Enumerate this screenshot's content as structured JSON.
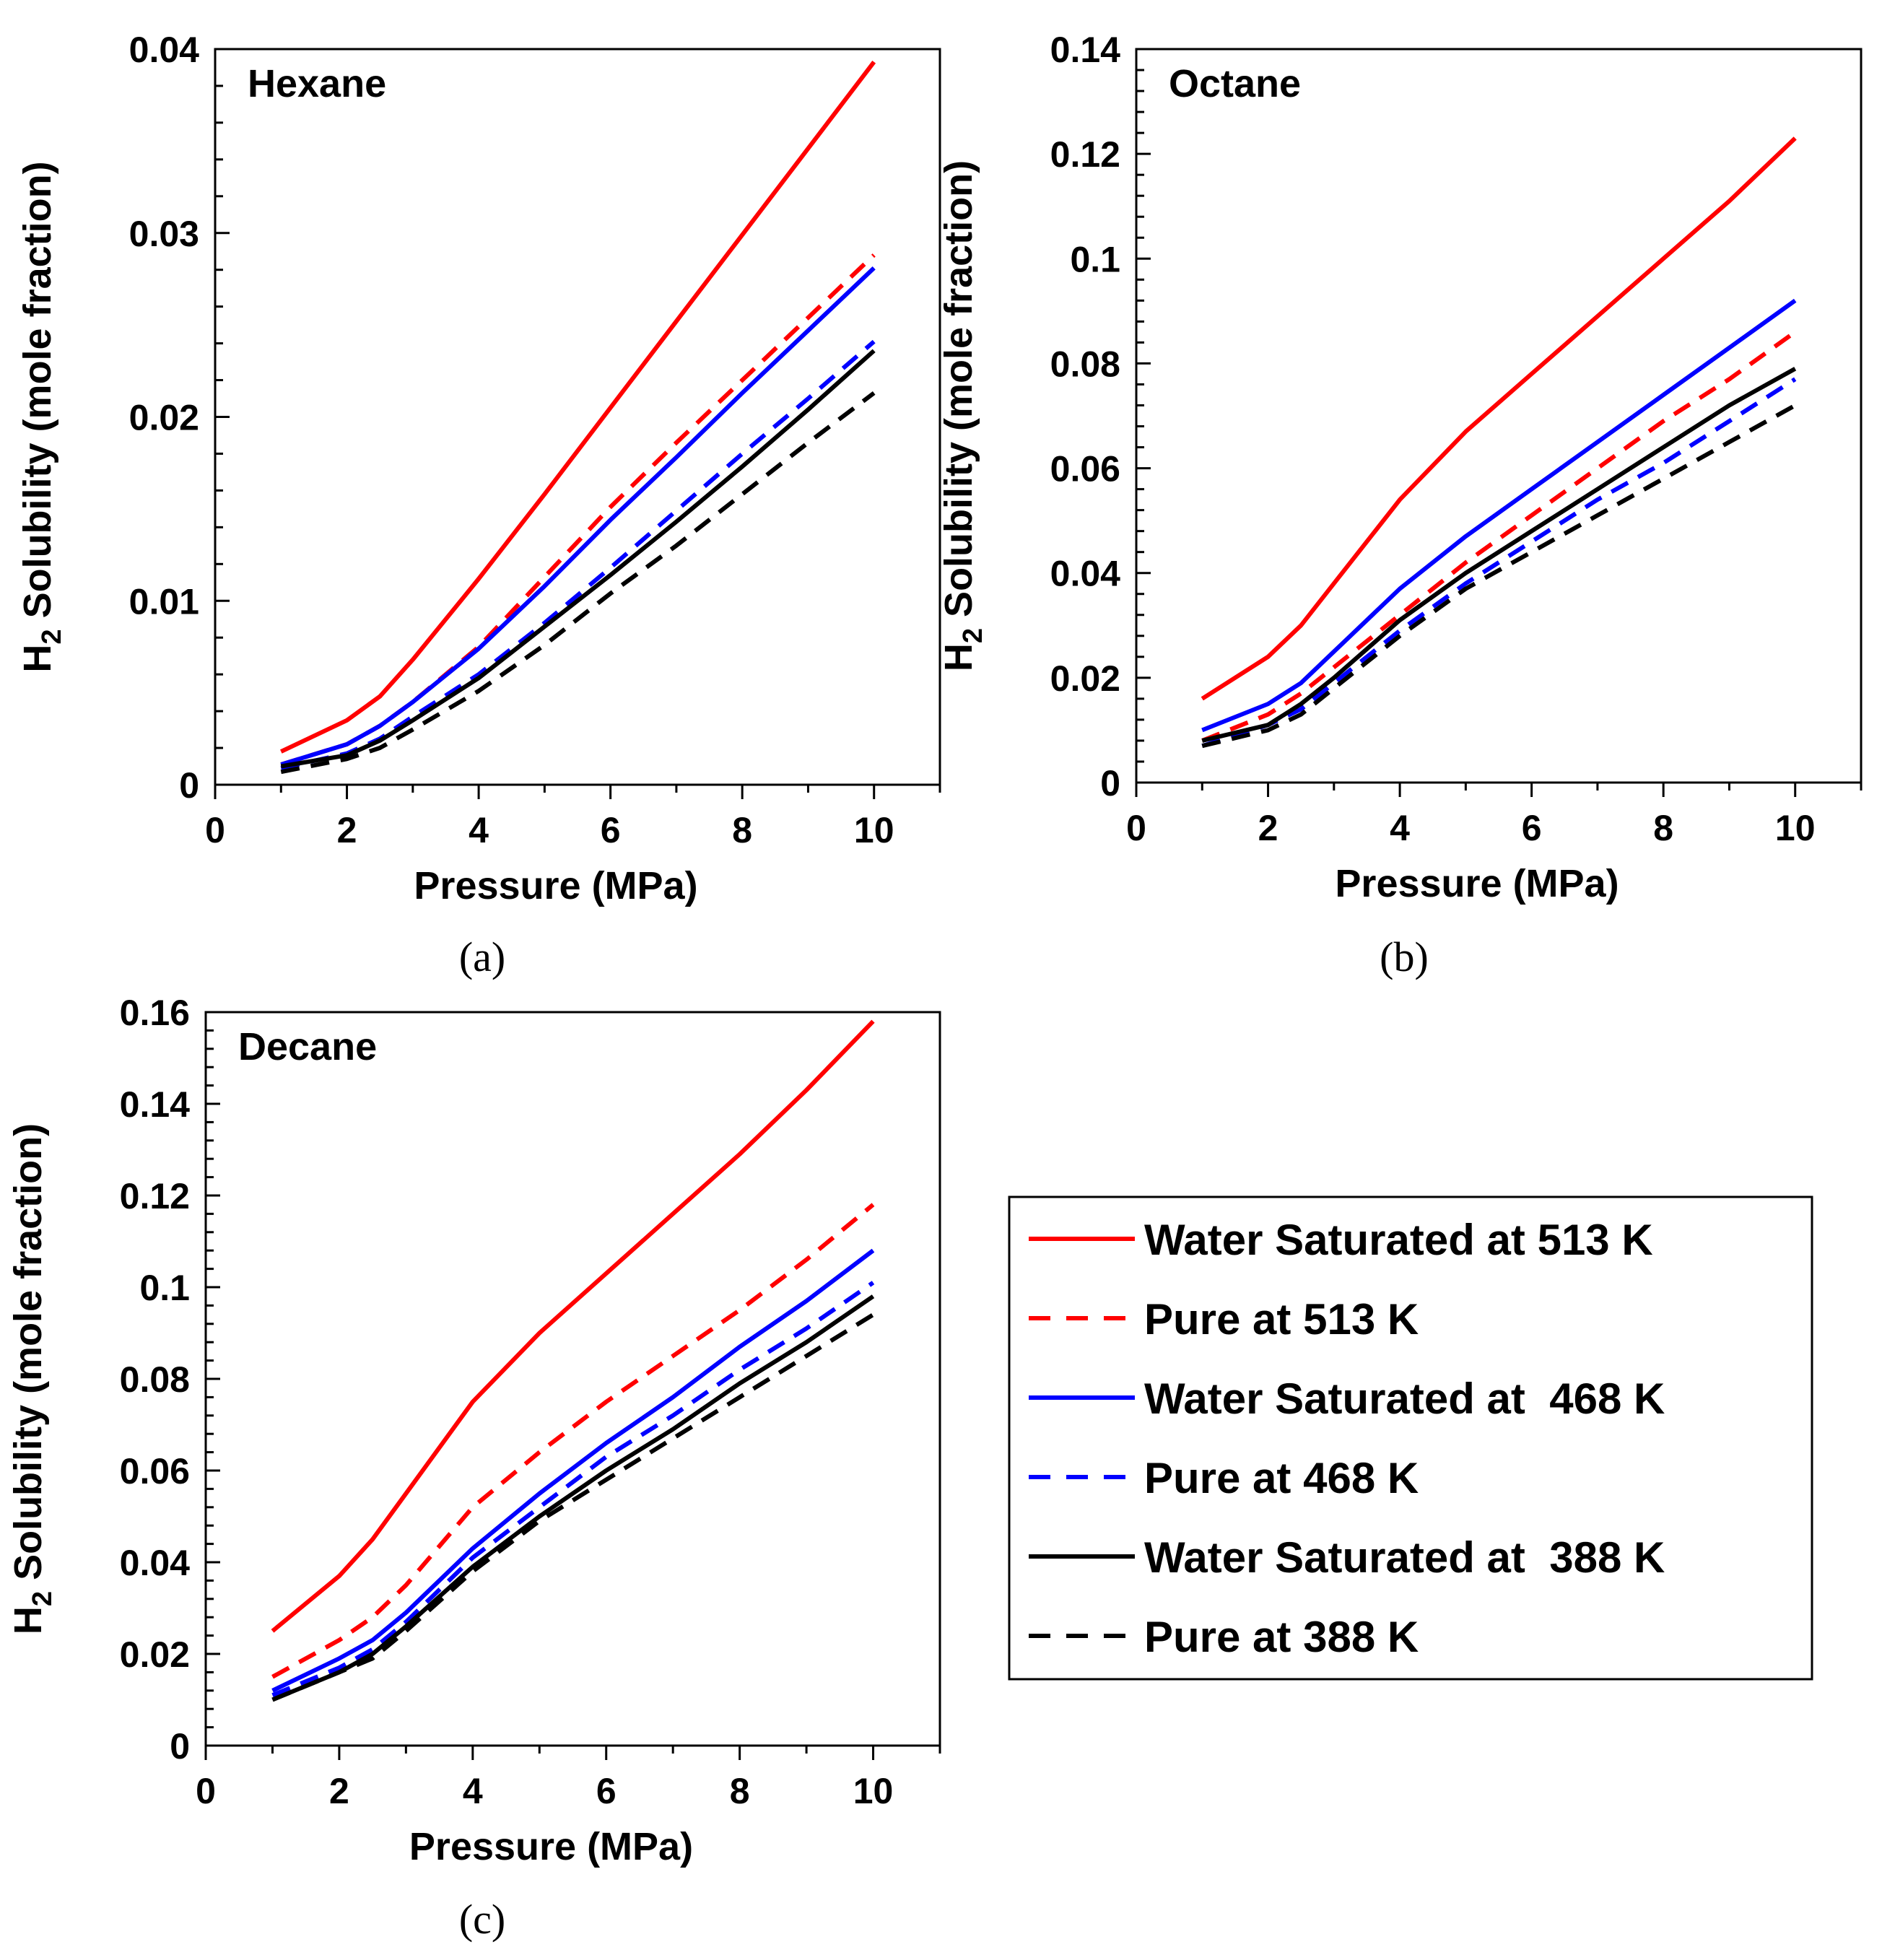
{
  "chart_data": [
    {
      "type": "line",
      "panel_label": "(a)",
      "title": "Hexane",
      "xlabel": "Pressure (MPa)",
      "ylabel_prefix": "H",
      "ylabel_sub": "2",
      "ylabel_rest": " Solubility (mole fraction)",
      "xlim": [
        0,
        11
      ],
      "ylim": [
        0,
        0.04
      ],
      "xticks": [
        0,
        2,
        4,
        6,
        8,
        10
      ],
      "xtick_labels": [
        "0",
        "2",
        "4",
        "6",
        "8",
        "10"
      ],
      "yticks": [
        0,
        0.01,
        0.02,
        0.03,
        0.04
      ],
      "ytick_labels": [
        "0",
        "0.01",
        "0.02",
        "0.03",
        "0.04"
      ],
      "x": [
        1,
        2,
        2.5,
        3,
        4,
        5,
        6,
        7,
        8,
        9,
        10
      ],
      "series": [
        {
          "name": "Water Saturated at 513 K",
          "values": [
            0.0018,
            0.0035,
            0.0048,
            0.0068,
            0.0112,
            0.0158,
            0.0205,
            0.0252,
            0.0299,
            0.0346,
            0.0393
          ]
        },
        {
          "name": "Pure at 513 K",
          "values": [
            0.0011,
            0.0022,
            0.0032,
            0.0045,
            0.0075,
            0.0113,
            0.0151,
            0.0186,
            0.022,
            0.0254,
            0.0288
          ]
        },
        {
          "name": "Water Saturated at 468 K",
          "values": [
            0.0011,
            0.0022,
            0.0032,
            0.0045,
            0.0074,
            0.0108,
            0.0144,
            0.0178,
            0.0213,
            0.0247,
            0.0281
          ]
        },
        {
          "name": "Pure at 468 K",
          "values": [
            0.0009,
            0.0017,
            0.0025,
            0.0037,
            0.006,
            0.0088,
            0.0118,
            0.0149,
            0.018,
            0.021,
            0.0241
          ]
        },
        {
          "name": "Water Saturated at 388 K",
          "values": [
            0.001,
            0.0016,
            0.0024,
            0.0035,
            0.0058,
            0.0086,
            0.0114,
            0.0143,
            0.0173,
            0.0204,
            0.0236
          ]
        },
        {
          "name": "Pure at 388 K",
          "values": [
            0.0007,
            0.0014,
            0.002,
            0.003,
            0.0051,
            0.0076,
            0.0104,
            0.013,
            0.0158,
            0.0186,
            0.0213
          ]
        }
      ]
    },
    {
      "type": "line",
      "panel_label": "(b)",
      "title": "Octane",
      "xlabel": "Pressure (MPa)",
      "ylabel_prefix": "H",
      "ylabel_sub": "2",
      "ylabel_rest": " Solubility (mole fraction)",
      "xlim": [
        0,
        11
      ],
      "ylim": [
        0,
        0.14
      ],
      "xticks": [
        0,
        2,
        4,
        6,
        8,
        10
      ],
      "xtick_labels": [
        "0",
        "2",
        "4",
        "6",
        "8",
        "10"
      ],
      "yticks": [
        0,
        0.02,
        0.04,
        0.06,
        0.08,
        0.1,
        0.12,
        0.14
      ],
      "ytick_labels": [
        "0",
        "0.02",
        "0.04",
        "0.06",
        "0.08",
        "0.1",
        "0.12",
        "0.14"
      ],
      "x": [
        1,
        2,
        2.5,
        3,
        4,
        5,
        6,
        7,
        8,
        9,
        10
      ],
      "series": [
        {
          "name": "Water Saturated at 513 K",
          "values": [
            0.016,
            0.024,
            0.03,
            0.038,
            0.054,
            0.067,
            0.078,
            0.089,
            0.1,
            0.111,
            0.123
          ]
        },
        {
          "name": "Pure at 513 K",
          "values": [
            0.008,
            0.013,
            0.017,
            0.022,
            0.032,
            0.042,
            0.051,
            0.06,
            0.069,
            0.077,
            0.086
          ]
        },
        {
          "name": "Water Saturated at 468 K",
          "values": [
            0.01,
            0.015,
            0.019,
            0.025,
            0.037,
            0.047,
            0.056,
            0.065,
            0.074,
            0.083,
            0.092
          ]
        },
        {
          "name": "Pure at 468 K",
          "values": [
            0.007,
            0.011,
            0.014,
            0.019,
            0.029,
            0.038,
            0.046,
            0.054,
            0.061,
            0.069,
            0.077
          ]
        },
        {
          "name": "Water Saturated at 388 K",
          "values": [
            0.008,
            0.011,
            0.015,
            0.02,
            0.031,
            0.04,
            0.048,
            0.056,
            0.064,
            0.072,
            0.079
          ]
        },
        {
          "name": "Pure at 388 K",
          "values": [
            0.007,
            0.01,
            0.013,
            0.018,
            0.028,
            0.037,
            0.044,
            0.051,
            0.058,
            0.065,
            0.072
          ]
        }
      ]
    },
    {
      "type": "line",
      "panel_label": "(c)",
      "title": "Decane",
      "xlabel": "Pressure (MPa)",
      "ylabel_prefix": "H",
      "ylabel_sub": "2",
      "ylabel_rest": " Solubility (mole fraction)",
      "xlim": [
        0,
        11
      ],
      "ylim": [
        0,
        0.16
      ],
      "xticks": [
        0,
        2,
        4,
        6,
        8,
        10
      ],
      "xtick_labels": [
        "0",
        "2",
        "4",
        "6",
        "8",
        "10"
      ],
      "yticks": [
        0,
        0.02,
        0.04,
        0.06,
        0.08,
        0.1,
        0.12,
        0.14,
        0.16
      ],
      "ytick_labels": [
        "0",
        "0.02",
        "0.04",
        "0.06",
        "0.08",
        "0.1",
        "0.12",
        "0.14",
        "0.16"
      ],
      "x": [
        1,
        2,
        2.5,
        3,
        4,
        5,
        6,
        7,
        8,
        9,
        10
      ],
      "series": [
        {
          "name": "Water Saturated at 513 K",
          "values": [
            0.025,
            0.037,
            0.045,
            0.055,
            0.075,
            0.09,
            0.103,
            0.116,
            0.129,
            0.143,
            0.158
          ]
        },
        {
          "name": "Pure at 513 K",
          "values": [
            0.015,
            0.023,
            0.028,
            0.035,
            0.052,
            0.064,
            0.075,
            0.085,
            0.095,
            0.106,
            0.118
          ]
        },
        {
          "name": "Water Saturated at 468 K",
          "values": [
            0.012,
            0.019,
            0.023,
            0.029,
            0.043,
            0.055,
            0.066,
            0.076,
            0.087,
            0.097,
            0.108
          ]
        },
        {
          "name": "Pure at 468 K",
          "values": [
            0.011,
            0.017,
            0.021,
            0.027,
            0.041,
            0.052,
            0.063,
            0.072,
            0.082,
            0.091,
            0.101
          ]
        },
        {
          "name": "Water Saturated at 388 K",
          "values": [
            0.01,
            0.016,
            0.02,
            0.026,
            0.039,
            0.05,
            0.06,
            0.069,
            0.079,
            0.088,
            0.098
          ]
        },
        {
          "name": "Pure at 388 K",
          "values": [
            0.01,
            0.016,
            0.019,
            0.025,
            0.038,
            0.049,
            0.058,
            0.067,
            0.076,
            0.085,
            0.094
          ]
        }
      ]
    }
  ],
  "legend": {
    "entries": [
      {
        "label": "Water Saturated at 513 K",
        "color": "#ff0000",
        "dashed": false
      },
      {
        "label": "Pure at 513 K",
        "color": "#ff0000",
        "dashed": true
      },
      {
        "label": "Water Saturated at  468 K",
        "color": "#0000ff",
        "dashed": false
      },
      {
        "label": "Pure at 468 K",
        "color": "#0000ff",
        "dashed": true
      },
      {
        "label": "Water Saturated at  388 K",
        "color": "#000000",
        "dashed": false
      },
      {
        "label": "Pure at 388 K",
        "color": "#000000",
        "dashed": true
      }
    ]
  },
  "series_styles": [
    {
      "color": "#ff0000",
      "dashed": false
    },
    {
      "color": "#ff0000",
      "dashed": true
    },
    {
      "color": "#0000ff",
      "dashed": false
    },
    {
      "color": "#0000ff",
      "dashed": true
    },
    {
      "color": "#000000",
      "dashed": false
    },
    {
      "color": "#000000",
      "dashed": true
    }
  ]
}
